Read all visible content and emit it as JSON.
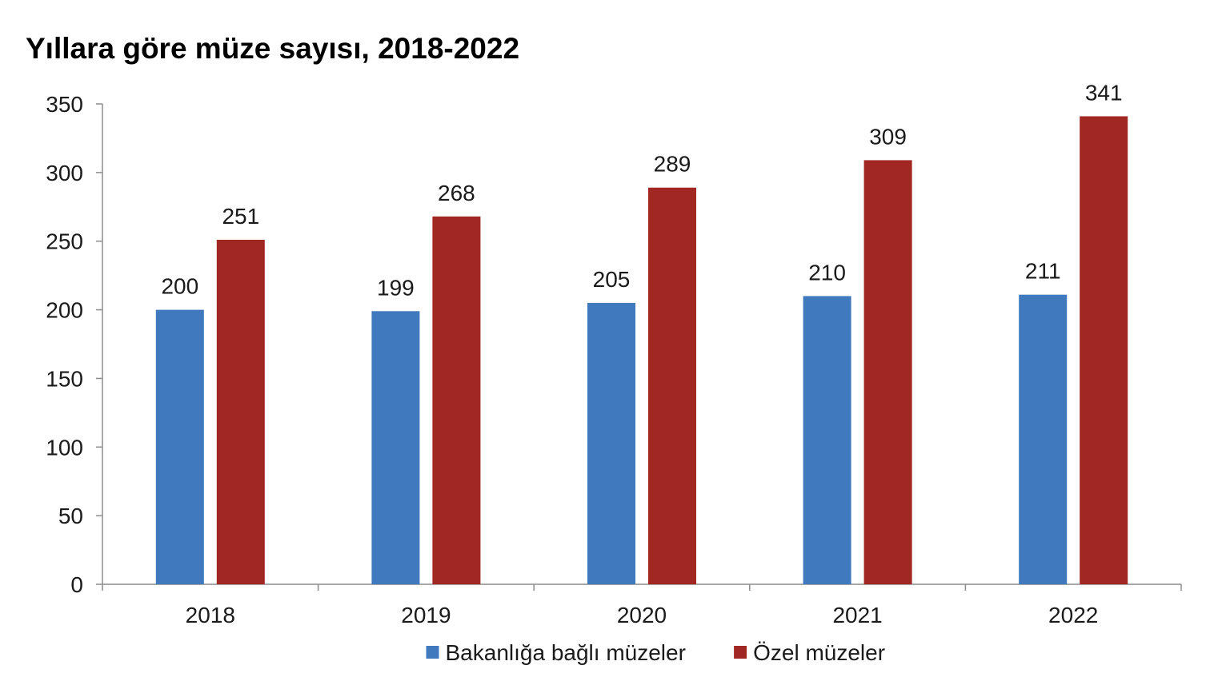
{
  "chart_data": {
    "type": "bar",
    "title": "Yıllara göre müze sayısı, 2018-2022",
    "xlabel": "",
    "ylabel": "",
    "categories": [
      "2018",
      "2019",
      "2020",
      "2021",
      "2022"
    ],
    "series": [
      {
        "name": "Bakanlığa bağlı müzeler",
        "values": [
          200,
          199,
          205,
          210,
          211
        ],
        "color": "#4079BD"
      },
      {
        "name": "Özel müzeler",
        "values": [
          251,
          268,
          289,
          309,
          341
        ],
        "color": "#A02722"
      }
    ],
    "ylim": [
      0,
      350
    ],
    "yticks": [
      0,
      50,
      100,
      150,
      200,
      250,
      300,
      350
    ],
    "grid": false,
    "legend_position": "bottom"
  }
}
